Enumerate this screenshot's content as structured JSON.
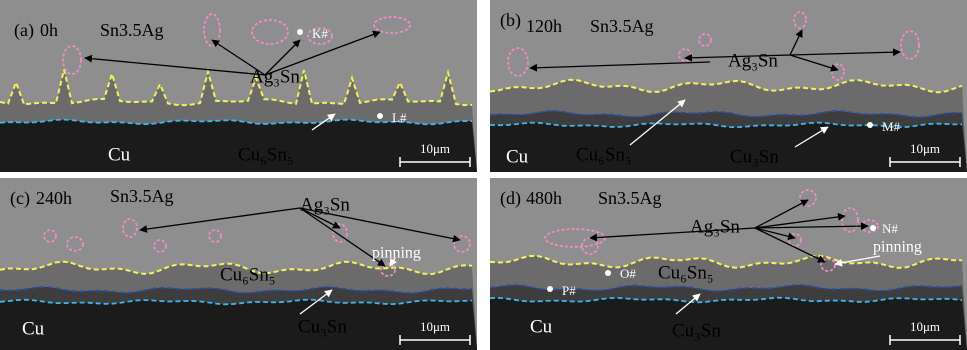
{
  "panels": [
    {
      "label": "(a)",
      "time": "0h",
      "alloy": "Sn3.5Ag",
      "phases": [
        "Ag₃Sn",
        "Cu",
        "Cu₆Sn₅"
      ],
      "points": [
        "K#",
        "L#"
      ],
      "scale_bar": "10μm"
    },
    {
      "label": "(b)",
      "time": "120h",
      "alloy": "Sn3.5Ag",
      "phases": [
        "Ag₃Sn",
        "Cu",
        "Cu₆Sn₅",
        "Cu₃Sn"
      ],
      "points": [
        "M#"
      ],
      "scale_bar": "10μm"
    },
    {
      "label": "(c)",
      "time": "240h",
      "alloy": "Sn3.5Ag",
      "phases": [
        "Ag₃Sn",
        "Cu₆Sn₅",
        "Cu",
        "Cu₃Sn"
      ],
      "annotation": "pinning",
      "scale_bar": "10μm"
    },
    {
      "label": "(d)",
      "time": "480h",
      "alloy": "Sn3.5Ag",
      "phases": [
        "Ag₃Sn",
        "Cu₆Sn₅",
        "Cu",
        "Cu₃Sn"
      ],
      "points": [
        "N#",
        "O#",
        "P#"
      ],
      "annotation": "pinning",
      "scale_bar": "10μm"
    }
  ]
}
